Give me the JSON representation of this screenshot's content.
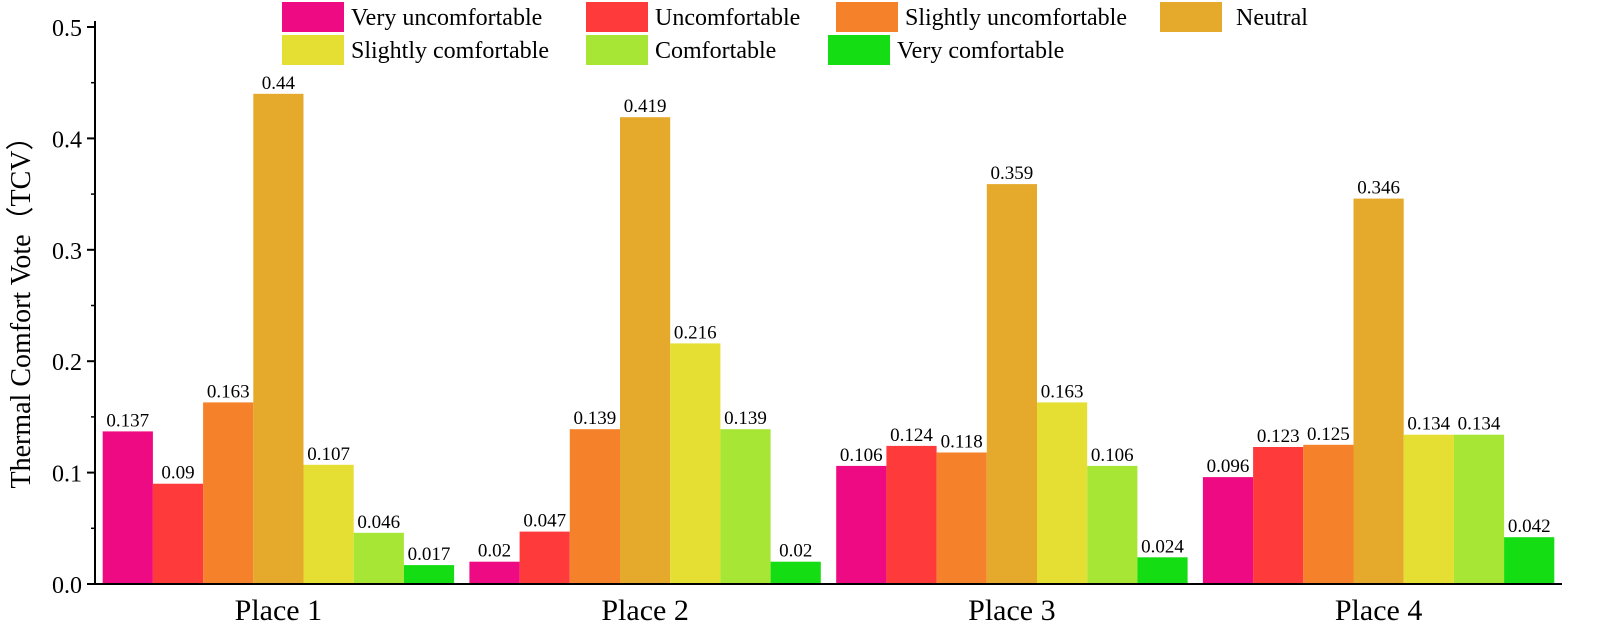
{
  "chart_data": {
    "type": "bar",
    "title": "",
    "xlabel": "",
    "ylabel": "Thermal Comfort Vote（TCV）",
    "ylim": [
      0,
      0.5
    ],
    "yticks": [
      "0.0",
      "0.1",
      "0.2",
      "0.3",
      "0.4",
      "0.5"
    ],
    "grid": false,
    "legend_position": "top",
    "categories": [
      "Place 1",
      "Place 2",
      "Place 3",
      "Place 4"
    ],
    "series": [
      {
        "name": "Very uncomfortable",
        "color": "#EE0A82",
        "values": [
          0.137,
          0.02,
          0.106,
          0.096
        ],
        "labels": [
          "0.137",
          "0.02",
          "0.106",
          "0.096"
        ]
      },
      {
        "name": "Uncomfortable",
        "color": "#FF3A3A",
        "values": [
          0.09,
          0.047,
          0.124,
          0.123
        ],
        "labels": [
          "0.09",
          "0.047",
          "0.124",
          "0.123"
        ]
      },
      {
        "name": "Slightly uncomfortable",
        "color": "#F5822A",
        "values": [
          0.163,
          0.139,
          0.118,
          0.125
        ],
        "labels": [
          "0.163",
          "0.139",
          "0.118",
          "0.125"
        ]
      },
      {
        "name": "Neutral",
        "color": "#E5A92C",
        "values": [
          0.44,
          0.419,
          0.359,
          0.346
        ],
        "labels": [
          "0.44",
          "0.419",
          "0.359",
          "0.346"
        ]
      },
      {
        "name": "Slightly comfortable",
        "color": "#E6DF33",
        "values": [
          0.107,
          0.216,
          0.163,
          0.134
        ],
        "labels": [
          "0.107",
          "0.216",
          "0.163",
          "0.134"
        ]
      },
      {
        "name": "Comfortable",
        "color": "#A8E635",
        "values": [
          0.046,
          0.139,
          0.106,
          0.134
        ],
        "labels": [
          "0.046",
          "0.139",
          "0.106",
          "0.134"
        ]
      },
      {
        "name": "Very comfortable",
        "color": "#14DD14",
        "values": [
          0.017,
          0.02,
          0.024,
          0.042
        ],
        "labels": [
          "0.017",
          "0.02",
          "0.024",
          "0.042"
        ]
      }
    ]
  }
}
